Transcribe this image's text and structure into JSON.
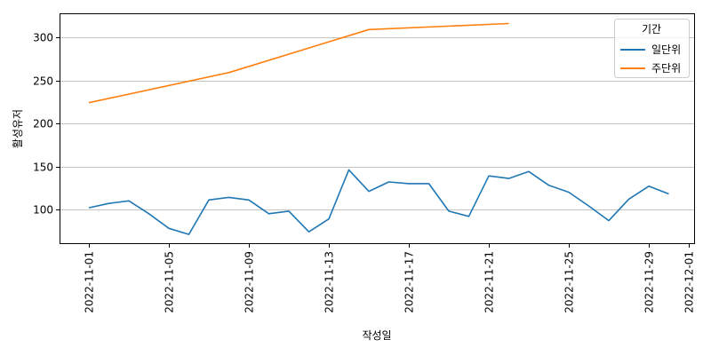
{
  "chart_data": {
    "type": "line",
    "title": "",
    "xlabel": "작성일",
    "ylabel": "활성유저",
    "ylim": [
      61,
      322
    ],
    "xlim": [
      "2022-10-30",
      "2022-12-01"
    ],
    "yticks": [
      100,
      150,
      200,
      250,
      300
    ],
    "xticks": [
      "2022-11-01",
      "2022-11-05",
      "2022-11-09",
      "2022-11-13",
      "2022-11-17",
      "2022-11-21",
      "2022-11-25",
      "2022-11-29",
      "2022-12-01"
    ],
    "grid": "y",
    "legend": {
      "title": "기간",
      "position": "upper right",
      "entries": [
        "일단위",
        "주단위"
      ]
    },
    "series": [
      {
        "name": "일단위",
        "color": "#1f77b4",
        "x": [
          "2022-11-01",
          "2022-11-02",
          "2022-11-03",
          "2022-11-04",
          "2022-11-05",
          "2022-11-06",
          "2022-11-07",
          "2022-11-08",
          "2022-11-09",
          "2022-11-10",
          "2022-11-11",
          "2022-11-12",
          "2022-11-13",
          "2022-11-14",
          "2022-11-15",
          "2022-11-16",
          "2022-11-17",
          "2022-11-18",
          "2022-11-19",
          "2022-11-20",
          "2022-11-21",
          "2022-11-22",
          "2022-11-23",
          "2022-11-24",
          "2022-11-25",
          "2022-11-26",
          "2022-11-27",
          "2022-11-28",
          "2022-11-29",
          "2022-11-30"
        ],
        "values": [
          102,
          107,
          110,
          95,
          78,
          71,
          111,
          114,
          111,
          95,
          98,
          74,
          89,
          146,
          121,
          132,
          130,
          130,
          98,
          92,
          139,
          136,
          144,
          128,
          120,
          104,
          87,
          112,
          127,
          118
        ]
      },
      {
        "name": "주단위",
        "color": "#ff7f0e",
        "x": [
          "2022-11-01",
          "2022-11-08",
          "2022-11-15",
          "2022-11-22"
        ],
        "values": [
          224,
          259,
          309,
          316
        ]
      }
    ]
  }
}
